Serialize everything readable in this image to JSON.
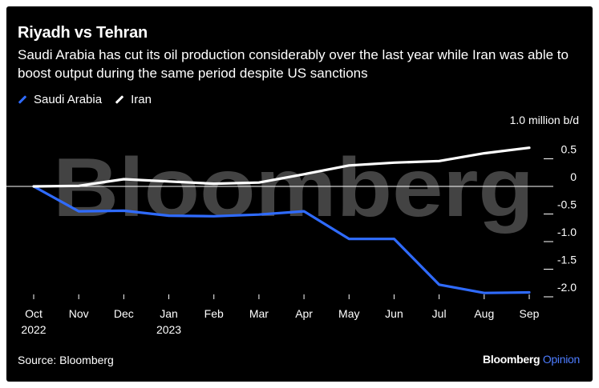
{
  "header": {
    "title": "Riyadh vs Tehran",
    "subtitle": "Saudi Arabia has cut its oil production considerably over the last year while Iran was able to boost output during the same period despite US sanctions"
  },
  "watermark": "Bloomberg",
  "footer": {
    "source": "Source: Bloomberg",
    "brand_main": "Bloomberg",
    "brand_accent": "Opinion"
  },
  "colors": {
    "saudi": "#2f6bff",
    "iran": "#ffffff",
    "background": "#000000",
    "brand_accent": "#4d7cff"
  },
  "chart_data": {
    "type": "line",
    "title": "Riyadh vs Tehran",
    "ylabel": "1.0 million b/d",
    "ylim": [
      -2.1,
      0.75
    ],
    "yticks": [
      0.5,
      0,
      -0.5,
      -1.0,
      -1.5,
      -2.0
    ],
    "ytick_labels": [
      "0.5",
      "0",
      "-0.5",
      "-1.0",
      "-1.5",
      "-2.0"
    ],
    "categories": [
      "Oct 2022",
      "Nov",
      "Dec",
      "Jan 2023",
      "Feb",
      "Mar",
      "Apr",
      "May",
      "Jun",
      "Jul",
      "Aug",
      "Sep"
    ],
    "xtick_labels": [
      [
        "Oct",
        "2022"
      ],
      [
        "Nov"
      ],
      [
        "Dec"
      ],
      [
        "Jan",
        "2023"
      ],
      [
        "Feb"
      ],
      [
        "Mar"
      ],
      [
        "Apr"
      ],
      [
        "May"
      ],
      [
        "Jun"
      ],
      [
        "Jul"
      ],
      [
        "Aug"
      ],
      [
        "Sep"
      ]
    ],
    "series": [
      {
        "name": "Saudi Arabia",
        "values": [
          0,
          -0.45,
          -0.44,
          -0.53,
          -0.54,
          -0.51,
          -0.45,
          -0.95,
          -0.95,
          -1.78,
          -1.93,
          -1.92
        ]
      },
      {
        "name": "Iran",
        "values": [
          0,
          0.01,
          0.13,
          0.09,
          0.05,
          0.07,
          0.22,
          0.38,
          0.43,
          0.46,
          0.6,
          0.7
        ]
      }
    ],
    "legend_position": "top-left",
    "grid": false
  }
}
